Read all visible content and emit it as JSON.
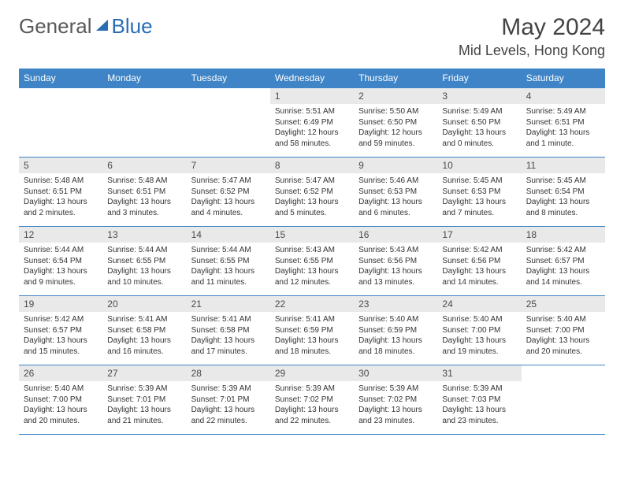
{
  "brand": {
    "part1": "General",
    "part2": "Blue"
  },
  "colors": {
    "header_bg": "#3e84c6",
    "header_text": "#ffffff",
    "row_border": "#3e84c6",
    "daynum_bg": "#e9e9e9",
    "text": "#333333",
    "logo_gray": "#5a5a5a",
    "logo_blue": "#2a6db5"
  },
  "title": "May 2024",
  "location": "Mid Levels, Hong Kong",
  "weekdays": [
    "Sunday",
    "Monday",
    "Tuesday",
    "Wednesday",
    "Thursday",
    "Friday",
    "Saturday"
  ],
  "weeks": [
    [
      null,
      null,
      null,
      {
        "n": "1",
        "sr": "5:51 AM",
        "ss": "6:49 PM",
        "d1": "Daylight: 12 hours",
        "d2": "and 58 minutes."
      },
      {
        "n": "2",
        "sr": "5:50 AM",
        "ss": "6:50 PM",
        "d1": "Daylight: 12 hours",
        "d2": "and 59 minutes."
      },
      {
        "n": "3",
        "sr": "5:49 AM",
        "ss": "6:50 PM",
        "d1": "Daylight: 13 hours",
        "d2": "and 0 minutes."
      },
      {
        "n": "4",
        "sr": "5:49 AM",
        "ss": "6:51 PM",
        "d1": "Daylight: 13 hours",
        "d2": "and 1 minute."
      }
    ],
    [
      {
        "n": "5",
        "sr": "5:48 AM",
        "ss": "6:51 PM",
        "d1": "Daylight: 13 hours",
        "d2": "and 2 minutes."
      },
      {
        "n": "6",
        "sr": "5:48 AM",
        "ss": "6:51 PM",
        "d1": "Daylight: 13 hours",
        "d2": "and 3 minutes."
      },
      {
        "n": "7",
        "sr": "5:47 AM",
        "ss": "6:52 PM",
        "d1": "Daylight: 13 hours",
        "d2": "and 4 minutes."
      },
      {
        "n": "8",
        "sr": "5:47 AM",
        "ss": "6:52 PM",
        "d1": "Daylight: 13 hours",
        "d2": "and 5 minutes."
      },
      {
        "n": "9",
        "sr": "5:46 AM",
        "ss": "6:53 PM",
        "d1": "Daylight: 13 hours",
        "d2": "and 6 minutes."
      },
      {
        "n": "10",
        "sr": "5:45 AM",
        "ss": "6:53 PM",
        "d1": "Daylight: 13 hours",
        "d2": "and 7 minutes."
      },
      {
        "n": "11",
        "sr": "5:45 AM",
        "ss": "6:54 PM",
        "d1": "Daylight: 13 hours",
        "d2": "and 8 minutes."
      }
    ],
    [
      {
        "n": "12",
        "sr": "5:44 AM",
        "ss": "6:54 PM",
        "d1": "Daylight: 13 hours",
        "d2": "and 9 minutes."
      },
      {
        "n": "13",
        "sr": "5:44 AM",
        "ss": "6:55 PM",
        "d1": "Daylight: 13 hours",
        "d2": "and 10 minutes."
      },
      {
        "n": "14",
        "sr": "5:44 AM",
        "ss": "6:55 PM",
        "d1": "Daylight: 13 hours",
        "d2": "and 11 minutes."
      },
      {
        "n": "15",
        "sr": "5:43 AM",
        "ss": "6:55 PM",
        "d1": "Daylight: 13 hours",
        "d2": "and 12 minutes."
      },
      {
        "n": "16",
        "sr": "5:43 AM",
        "ss": "6:56 PM",
        "d1": "Daylight: 13 hours",
        "d2": "and 13 minutes."
      },
      {
        "n": "17",
        "sr": "5:42 AM",
        "ss": "6:56 PM",
        "d1": "Daylight: 13 hours",
        "d2": "and 14 minutes."
      },
      {
        "n": "18",
        "sr": "5:42 AM",
        "ss": "6:57 PM",
        "d1": "Daylight: 13 hours",
        "d2": "and 14 minutes."
      }
    ],
    [
      {
        "n": "19",
        "sr": "5:42 AM",
        "ss": "6:57 PM",
        "d1": "Daylight: 13 hours",
        "d2": "and 15 minutes."
      },
      {
        "n": "20",
        "sr": "5:41 AM",
        "ss": "6:58 PM",
        "d1": "Daylight: 13 hours",
        "d2": "and 16 minutes."
      },
      {
        "n": "21",
        "sr": "5:41 AM",
        "ss": "6:58 PM",
        "d1": "Daylight: 13 hours",
        "d2": "and 17 minutes."
      },
      {
        "n": "22",
        "sr": "5:41 AM",
        "ss": "6:59 PM",
        "d1": "Daylight: 13 hours",
        "d2": "and 18 minutes."
      },
      {
        "n": "23",
        "sr": "5:40 AM",
        "ss": "6:59 PM",
        "d1": "Daylight: 13 hours",
        "d2": "and 18 minutes."
      },
      {
        "n": "24",
        "sr": "5:40 AM",
        "ss": "7:00 PM",
        "d1": "Daylight: 13 hours",
        "d2": "and 19 minutes."
      },
      {
        "n": "25",
        "sr": "5:40 AM",
        "ss": "7:00 PM",
        "d1": "Daylight: 13 hours",
        "d2": "and 20 minutes."
      }
    ],
    [
      {
        "n": "26",
        "sr": "5:40 AM",
        "ss": "7:00 PM",
        "d1": "Daylight: 13 hours",
        "d2": "and 20 minutes."
      },
      {
        "n": "27",
        "sr": "5:39 AM",
        "ss": "7:01 PM",
        "d1": "Daylight: 13 hours",
        "d2": "and 21 minutes."
      },
      {
        "n": "28",
        "sr": "5:39 AM",
        "ss": "7:01 PM",
        "d1": "Daylight: 13 hours",
        "d2": "and 22 minutes."
      },
      {
        "n": "29",
        "sr": "5:39 AM",
        "ss": "7:02 PM",
        "d1": "Daylight: 13 hours",
        "d2": "and 22 minutes."
      },
      {
        "n": "30",
        "sr": "5:39 AM",
        "ss": "7:02 PM",
        "d1": "Daylight: 13 hours",
        "d2": "and 23 minutes."
      },
      {
        "n": "31",
        "sr": "5:39 AM",
        "ss": "7:03 PM",
        "d1": "Daylight: 13 hours",
        "d2": "and 23 minutes."
      },
      null
    ]
  ]
}
